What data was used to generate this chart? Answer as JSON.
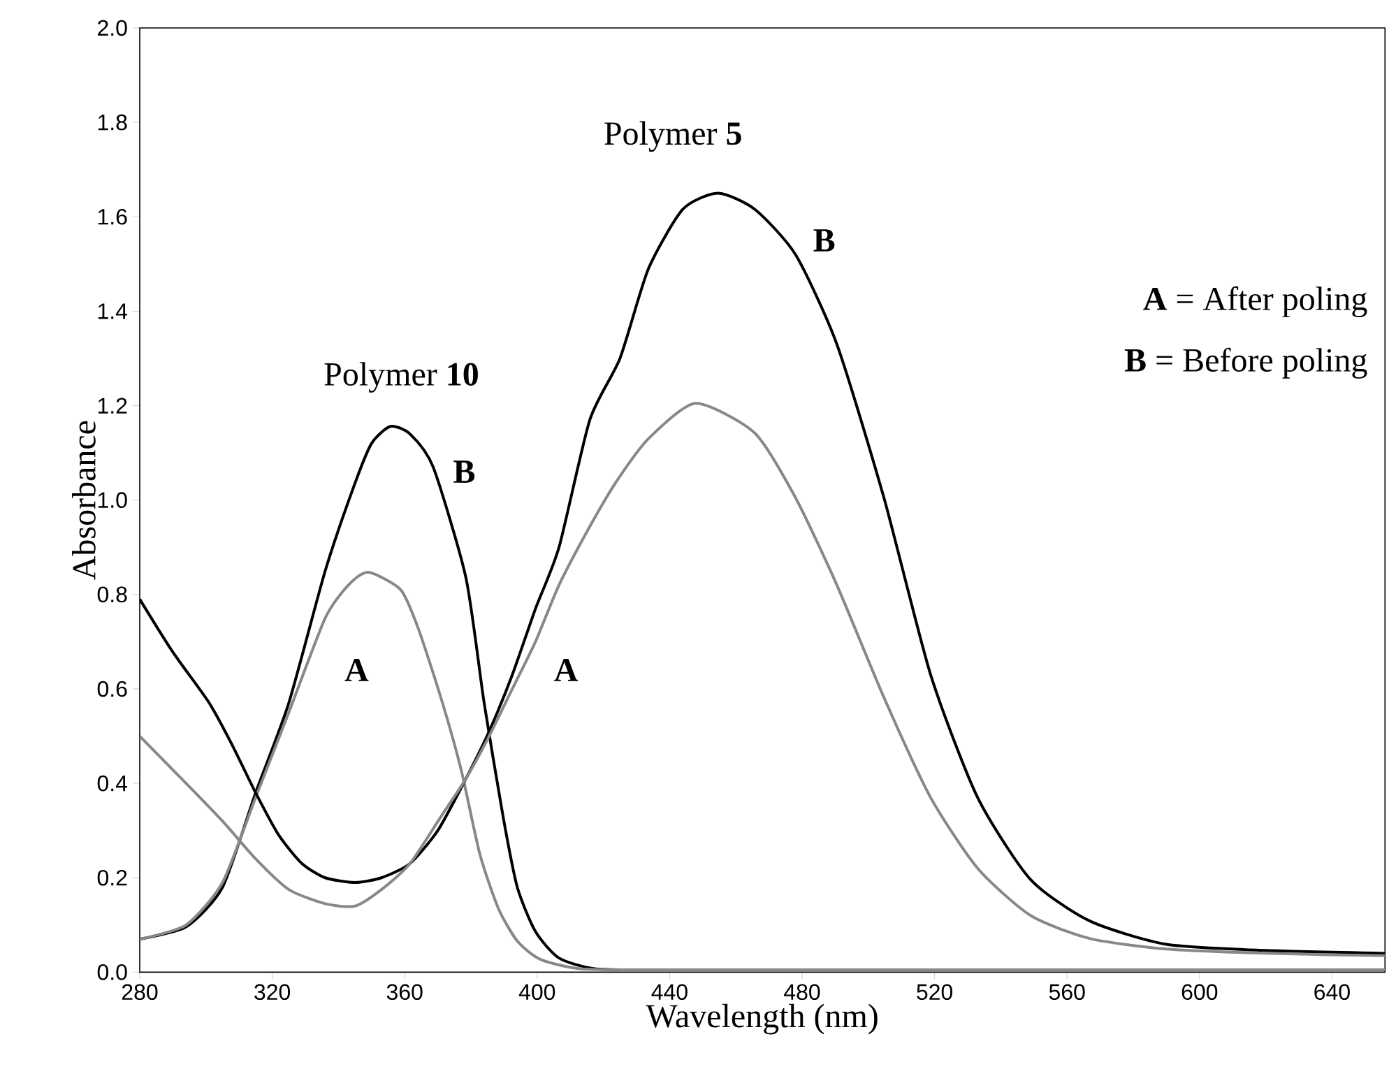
{
  "chart_data": {
    "type": "line",
    "xlabel": "Wavelength (nm)",
    "ylabel": "Absorbance",
    "xlim": [
      280,
      656
    ],
    "ylim": [
      0,
      2
    ],
    "xticks": [
      280,
      320,
      360,
      400,
      440,
      480,
      520,
      560,
      600,
      640
    ],
    "yticks": [
      {
        "value": 0,
        "label": "0.0"
      },
      {
        "value": 0.2,
        "label": "0.2"
      },
      {
        "value": 0.4,
        "label": "0.4"
      },
      {
        "value": 0.6,
        "label": "0.6"
      },
      {
        "value": 0.8,
        "label": "0.8"
      },
      {
        "value": 1.0,
        "label": "1.0"
      },
      {
        "value": 1.2,
        "label": "1.2"
      },
      {
        "value": 1.4,
        "label": "1.4"
      },
      {
        "value": 1.6,
        "label": "1.6"
      },
      {
        "value": 1.8,
        "label": "1.8"
      },
      {
        "value": 2.0,
        "label": "2.0"
      }
    ],
    "grid": false,
    "series": [
      {
        "color": "#000000",
        "x": [
          280,
          294,
          305,
          315,
          325,
          336,
          344.7,
          350,
          355.7,
          361.6,
          368.6,
          378.5,
          384,
          389.7,
          394,
          399.5,
          406.6,
          417.8,
          440,
          500,
          600,
          656
        ],
        "values": [
          0.07,
          0.096,
          0.18,
          0.38,
          0.57,
          0.85,
          1.03,
          1.12,
          1.156,
          1.14,
          1.07,
          0.835,
          0.57,
          0.33,
          0.18,
          0.086,
          0.03,
          0.007,
          0.005,
          0.005,
          0.005,
          0.005
        ]
      },
      {
        "color": "#888888",
        "x": [
          280,
          294,
          305,
          315,
          325,
          336,
          343,
          349,
          358.8,
          364,
          371,
          377,
          382.7,
          388.3,
          394,
          401,
          413.6,
          440,
          500,
          600,
          656
        ],
        "values": [
          0.07,
          0.1,
          0.19,
          0.37,
          0.55,
          0.75,
          0.82,
          0.847,
          0.81,
          0.73,
          0.58,
          0.43,
          0.25,
          0.135,
          0.066,
          0.027,
          0.007,
          0.005,
          0.005,
          0.005,
          0.005
        ]
      },
      {
        "color": "#000000",
        "x": [
          280,
          289.8,
          301,
          308,
          315,
          322,
          329,
          336,
          345,
          353,
          361.6,
          370,
          378.5,
          385.5,
          392.5,
          399.5,
          406.6,
          415.9,
          425,
          433.6,
          444,
          454.6,
          465.7,
          478,
          490.5,
          504.7,
          518.8,
          533,
          549,
          567,
          590,
          620,
          656
        ],
        "values": [
          0.79,
          0.68,
          0.57,
          0.48,
          0.38,
          0.29,
          0.23,
          0.2,
          0.19,
          0.2,
          0.23,
          0.3,
          0.41,
          0.51,
          0.63,
          0.77,
          0.9,
          1.17,
          1.3,
          1.49,
          1.616,
          1.65,
          1.616,
          1.52,
          1.33,
          1.005,
          0.63,
          0.37,
          0.196,
          0.108,
          0.059,
          0.046,
          0.04
        ]
      },
      {
        "color": "#888888",
        "x": [
          280,
          294,
          305,
          315,
          325,
          336,
          345,
          353,
          361.6,
          371,
          378.5,
          385.5,
          392.5,
          399.5,
          406.6,
          415.9,
          424,
          433.6,
          447.8,
          465.7,
          478,
          490.5,
          504.7,
          518.8,
          533,
          549,
          567,
          590,
          620,
          656
        ],
        "values": [
          0.5,
          0.4,
          0.32,
          0.24,
          0.175,
          0.145,
          0.14,
          0.175,
          0.23,
          0.33,
          0.41,
          0.5,
          0.6,
          0.7,
          0.82,
          0.944,
          1.04,
          1.13,
          1.205,
          1.142,
          1.005,
          0.82,
          0.582,
          0.37,
          0.22,
          0.12,
          0.071,
          0.049,
          0.04,
          0.035
        ]
      }
    ],
    "annotations": [
      "Polymer **10**",
      "**B**",
      "**A**",
      "**A**",
      "Polymer **5**",
      "**B**",
      "**A** = After poling",
      "**B** = Before poling"
    ]
  }
}
